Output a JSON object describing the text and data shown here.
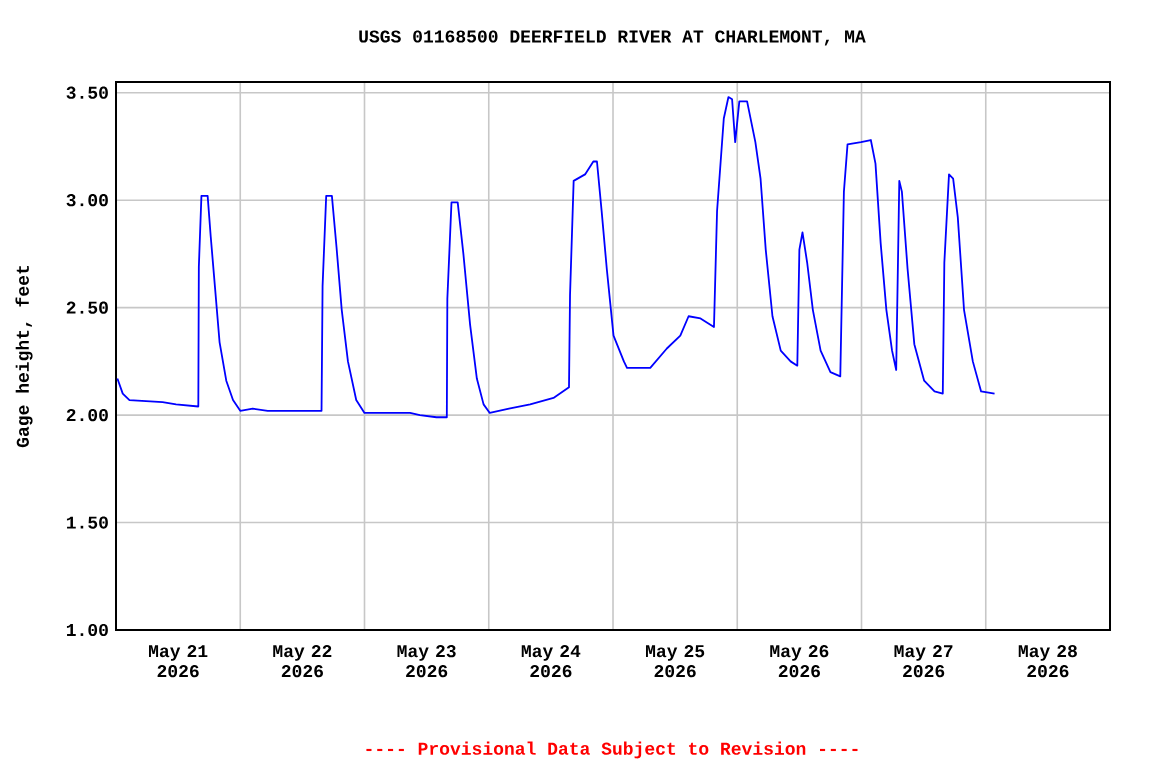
{
  "chart_data": {
    "type": "line",
    "title": "USGS 01168500 DEERFIELD RIVER AT CHARLEMONT, MA",
    "ylabel": "Gage height, feet",
    "annotations": [
      "---- Provisional Data Subject to Revision ----"
    ],
    "color": "#0000ff",
    "grid": true,
    "xlim": [
      "2026-05-21T00:00",
      "2026-05-29T00:00"
    ],
    "ylim": [
      1.0,
      3.55
    ],
    "yticks": [
      {
        "value": 1.0,
        "label": "1.00"
      },
      {
        "value": 1.5,
        "label": "1.50"
      },
      {
        "value": 2.0,
        "label": "2.00"
      },
      {
        "value": 2.5,
        "label": "2.50"
      },
      {
        "value": 3.0,
        "label": "3.00"
      },
      {
        "value": 3.5,
        "label": "3.50"
      }
    ],
    "xticks": [
      {
        "value": "2026-05-21T12:00",
        "label": "May 21 2026"
      },
      {
        "value": "2026-05-22T12:00",
        "label": "May 22 2026"
      },
      {
        "value": "2026-05-23T12:00",
        "label": "May 23 2026"
      },
      {
        "value": "2026-05-24T12:00",
        "label": "May 24 2026"
      },
      {
        "value": "2026-05-25T12:00",
        "label": "May 25 2026"
      },
      {
        "value": "2026-05-26T12:00",
        "label": "May 26 2026"
      },
      {
        "value": "2026-05-27T12:00",
        "label": "May 27 2026"
      },
      {
        "value": "2026-05-28T12:00",
        "label": "May 28 2026"
      },
      {
        "value": "2026-05-22T00:00",
        "label": null
      },
      {
        "value": "2026-05-23T00:00",
        "label": null
      },
      {
        "value": "2026-05-24T00:00",
        "label": null
      },
      {
        "value": "2026-05-25T00:00",
        "label": null
      },
      {
        "value": "2026-05-26T00:00",
        "label": null
      },
      {
        "value": "2026-05-27T00:00",
        "label": null
      },
      {
        "value": "2026-05-28T00:00",
        "label": null
      }
    ],
    "x": [
      "2026-05-21T00:16",
      "2026-05-21T01:18",
      "2026-05-21T02:36",
      "2026-05-21T09:00",
      "2026-05-21T11:36",
      "2026-05-21T15:54",
      "2026-05-21T16:00",
      "2026-05-21T16:30",
      "2026-05-21T17:42",
      "2026-05-21T18:18",
      "2026-05-21T19:06",
      "2026-05-21T20:00",
      "2026-05-21T21:18",
      "2026-05-21T22:36",
      "2026-05-22T00:00",
      "2026-05-22T02:24",
      "2026-05-22T05:18",
      "2026-05-22T15:42",
      "2026-05-22T15:54",
      "2026-05-22T16:36",
      "2026-05-22T17:42",
      "2026-05-22T18:36",
      "2026-05-22T19:36",
      "2026-05-22T20:48",
      "2026-05-22T22:24",
      "2026-05-23T00:00",
      "2026-05-23T08:48",
      "2026-05-23T10:42",
      "2026-05-23T13:54",
      "2026-05-23T15:54",
      "2026-05-23T16:00",
      "2026-05-23T16:48",
      "2026-05-23T18:00",
      "2026-05-23T19:06",
      "2026-05-23T20:24",
      "2026-05-23T21:42",
      "2026-05-23T23:00",
      "2026-05-24T00:12",
      "2026-05-24T03:54",
      "2026-05-24T08:00",
      "2026-05-24T12:30",
      "2026-05-24T15:30",
      "2026-05-24T15:42",
      "2026-05-24T16:24",
      "2026-05-24T18:36",
      "2026-05-24T20:12",
      "2026-05-24T20:54",
      "2026-05-24T21:48",
      "2026-05-24T22:48",
      "2026-05-25T00:06",
      "2026-05-25T02:06",
      "2026-05-25T02:42",
      "2026-05-25T07:12",
      "2026-05-25T10:24",
      "2026-05-25T13:00",
      "2026-05-25T14:36",
      "2026-05-25T16:54",
      "2026-05-25T19:30",
      "2026-05-25T20:06",
      "2026-05-25T21:24",
      "2026-05-25T22:18",
      "2026-05-25T23:00",
      "2026-05-25T23:36",
      "2026-05-26T00:24",
      "2026-05-26T01:54",
      "2026-05-26T03:30",
      "2026-05-26T04:30",
      "2026-05-26T05:30",
      "2026-05-26T06:48",
      "2026-05-26T08:24",
      "2026-05-26T10:18",
      "2026-05-26T11:36",
      "2026-05-26T12:00",
      "2026-05-26T12:36",
      "2026-05-26T13:30",
      "2026-05-26T14:36",
      "2026-05-26T16:06",
      "2026-05-26T18:00",
      "2026-05-26T19:54",
      "2026-05-26T20:36",
      "2026-05-26T21:18",
      "2026-05-26T23:54",
      "2026-05-27T01:48",
      "2026-05-27T02:42",
      "2026-05-27T03:42",
      "2026-05-27T04:48",
      "2026-05-27T05:54",
      "2026-05-27T06:42",
      "2026-05-27T07:18",
      "2026-05-27T07:48",
      "2026-05-27T08:54",
      "2026-05-27T10:12",
      "2026-05-27T12:06",
      "2026-05-27T14:06",
      "2026-05-27T15:42",
      "2026-05-27T16:00",
      "2026-05-27T16:54",
      "2026-05-27T17:42",
      "2026-05-27T18:36",
      "2026-05-27T19:48",
      "2026-05-27T21:30",
      "2026-05-27T23:06",
      "2026-05-28T01:42"
    ],
    "values": [
      2.17,
      2.1,
      2.07,
      2.06,
      2.05,
      2.04,
      2.69,
      3.02,
      3.02,
      2.83,
      2.6,
      2.34,
      2.16,
      2.07,
      2.02,
      2.03,
      2.02,
      2.02,
      2.6,
      3.02,
      3.02,
      2.78,
      2.49,
      2.25,
      2.07,
      2.01,
      2.01,
      2.0,
      1.99,
      1.99,
      2.54,
      2.99,
      2.99,
      2.75,
      2.42,
      2.17,
      2.05,
      2.01,
      2.03,
      2.05,
      2.08,
      2.13,
      2.56,
      3.09,
      3.12,
      3.18,
      3.18,
      2.95,
      2.68,
      2.37,
      2.25,
      2.22,
      2.22,
      2.31,
      2.37,
      2.46,
      2.45,
      2.41,
      2.95,
      3.38,
      3.48,
      3.47,
      3.27,
      3.46,
      3.46,
      3.27,
      3.1,
      2.77,
      2.46,
      2.3,
      2.25,
      2.23,
      2.77,
      2.85,
      2.71,
      2.49,
      2.3,
      2.2,
      2.18,
      3.04,
      3.26,
      3.27,
      3.28,
      3.17,
      2.8,
      2.49,
      2.3,
      2.21,
      3.09,
      3.04,
      2.68,
      2.33,
      2.16,
      2.11,
      2.1,
      2.71,
      3.12,
      3.1,
      2.92,
      2.49,
      2.25,
      2.11,
      2.1
    ]
  }
}
